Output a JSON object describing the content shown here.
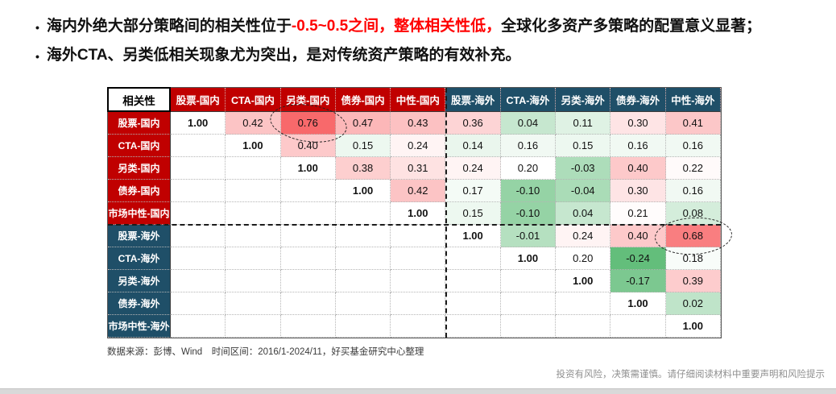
{
  "colors": {
    "header_domestic": "#C00000",
    "header_overseas": "#1F4F68",
    "accent_red_text": "#FF0000",
    "bullet_text": "#111111",
    "scale_high": "#F8696B",
    "scale_mid": "#FFFFFF",
    "scale_low": "#63BE7B"
  },
  "bullets": [
    {
      "segments": [
        {
          "text": "海内外绝大部分策略间的相关性位于",
          "emphasis": false
        },
        {
          "text": "-0.5~0.5之间，整体相关性低，",
          "emphasis": true
        },
        {
          "text": "全球化多资产多策略的配置意义显著；",
          "emphasis": false
        }
      ]
    },
    {
      "segments": [
        {
          "text": "海外CTA、另类低相关现象尤为突出，是对传统资产策略的有效补充。",
          "emphasis": false
        }
      ]
    }
  ],
  "chart_data": {
    "type": "heatmap",
    "title": "相关性",
    "corner_label": "相关性",
    "col_labels": [
      "股票-国内",
      "CTA-国内",
      "另类-国内",
      "债券-国内",
      "中性-国内",
      "股票-海外",
      "CTA-海外",
      "另类-海外",
      "债券-海外",
      "中性-海外"
    ],
    "col_groups": [
      "domestic",
      "domestic",
      "domestic",
      "domestic",
      "domestic",
      "overseas",
      "overseas",
      "overseas",
      "overseas",
      "overseas"
    ],
    "row_labels": [
      "股票-国内",
      "CTA-国内",
      "另类-国内",
      "债券-国内",
      "市场中性-国内",
      "股票-海外",
      "CTA-海外",
      "另类-海外",
      "债券-海外",
      "市场中性-海外"
    ],
    "row_groups": [
      "domestic",
      "domestic",
      "domestic",
      "domestic",
      "domestic",
      "overseas",
      "overseas",
      "overseas",
      "overseas",
      "overseas"
    ],
    "matrix": [
      [
        1.0,
        0.42,
        0.76,
        0.47,
        0.43,
        0.36,
        0.04,
        0.11,
        0.3,
        0.41
      ],
      [
        null,
        1.0,
        0.4,
        0.15,
        0.24,
        0.14,
        0.16,
        0.15,
        0.16,
        0.16
      ],
      [
        null,
        null,
        1.0,
        0.38,
        0.31,
        0.24,
        0.2,
        -0.03,
        0.4,
        0.22
      ],
      [
        null,
        null,
        null,
        1.0,
        0.42,
        0.17,
        -0.1,
        -0.04,
        0.3,
        0.16
      ],
      [
        null,
        null,
        null,
        null,
        1.0,
        0.15,
        -0.1,
        0.04,
        0.21,
        0.08
      ],
      [
        null,
        null,
        null,
        null,
        null,
        1.0,
        -0.01,
        0.24,
        0.4,
        0.68
      ],
      [
        null,
        null,
        null,
        null,
        null,
        null,
        1.0,
        0.2,
        -0.24,
        0.18
      ],
      [
        null,
        null,
        null,
        null,
        null,
        null,
        null,
        1.0,
        -0.17,
        0.39
      ],
      [
        null,
        null,
        null,
        null,
        null,
        null,
        null,
        null,
        1.0,
        0.02
      ],
      [
        null,
        null,
        null,
        null,
        null,
        null,
        null,
        null,
        null,
        1.0
      ]
    ],
    "color_scale": {
      "min_value": -0.24,
      "mid_value": 0.2,
      "max_value": 0.76,
      "min_color": "#63BE7B",
      "mid_color": "#FFFFFF",
      "max_color": "#F8696B"
    },
    "quadrant_split_after": 5,
    "annotations": [
      {
        "row": 0,
        "col": 2,
        "value": 0.76,
        "rotate_deg": 8
      },
      {
        "row": 5,
        "col": 9,
        "value": 0.68,
        "rotate_deg": -3
      }
    ]
  },
  "footer": {
    "source": "数据来源：彭博、Wind　时间区间：2016/1-2024/11，好买基金研究中心整理",
    "disclaimer": "投资有风险，决策需谨慎。请仔细阅读材料中重要声明和风险提示"
  }
}
